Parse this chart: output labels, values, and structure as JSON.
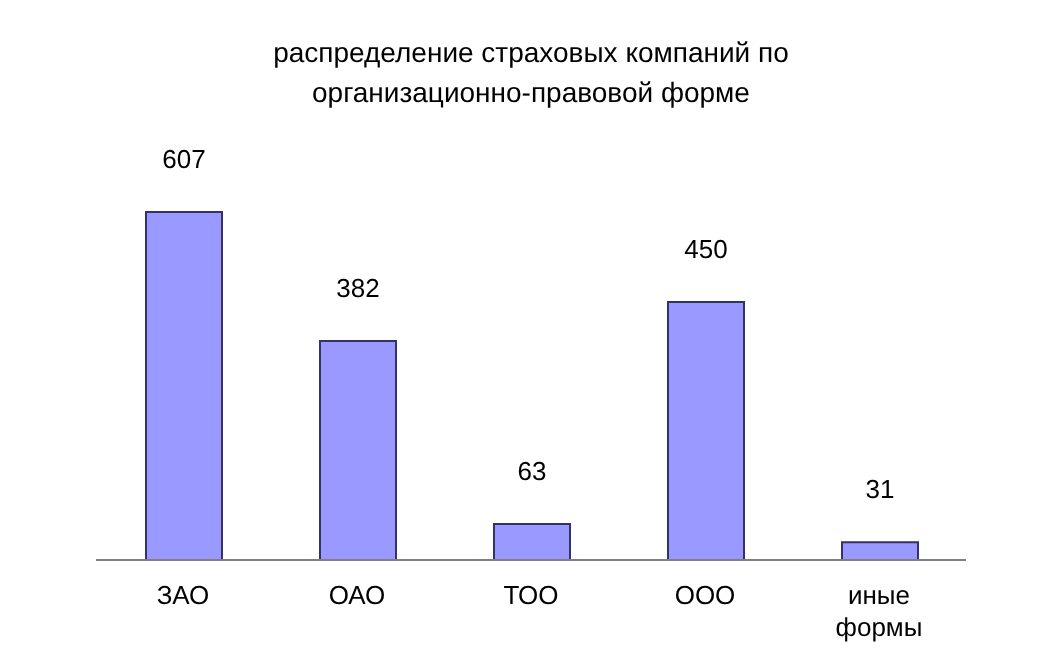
{
  "chart_data": {
    "type": "bar",
    "title": "распределение страховых компаний по организационно-правовой форме",
    "categories": [
      "ЗАО",
      "ОАО",
      "ТОО",
      "ООО",
      "иные формы"
    ],
    "values": [
      607,
      382,
      63,
      450,
      31
    ],
    "color": "#9999ff",
    "data_labels": true
  }
}
